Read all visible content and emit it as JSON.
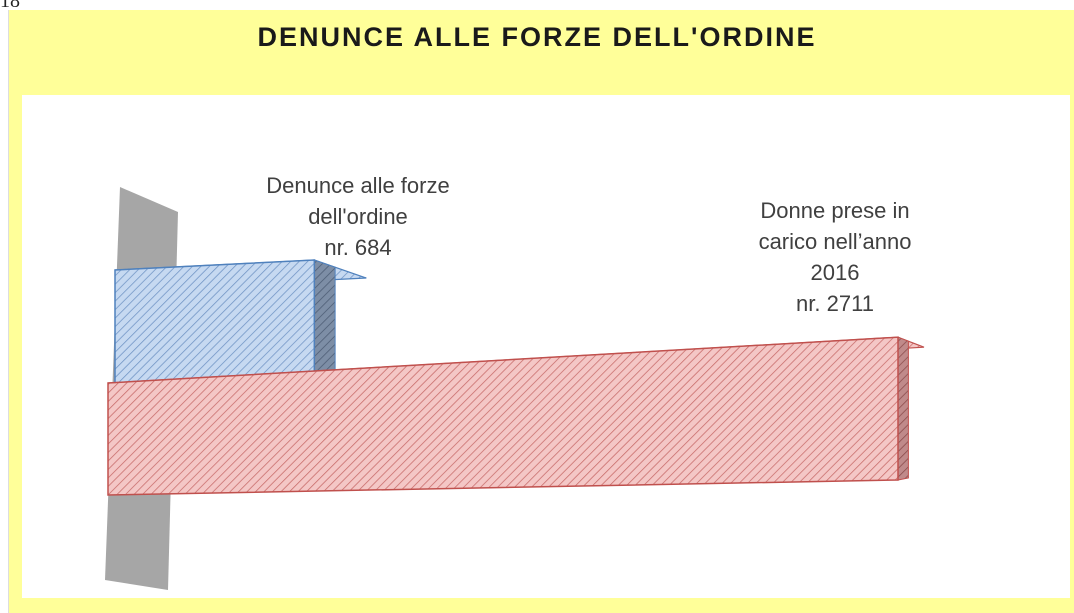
{
  "page_number": "18",
  "chart_data": {
    "type": "bar3d",
    "title": "DENUNCE ALLE FORZE DELL'ORDINE",
    "categories": [
      "Denunce alle forze dell'ordine",
      "Donne prese in carico nell’anno 2016"
    ],
    "values": [
      684,
      2711
    ],
    "value_labels": [
      "nr. 684",
      "nr. 2711"
    ],
    "colors": [
      "#4f81bd",
      "#c0504d"
    ]
  }
}
